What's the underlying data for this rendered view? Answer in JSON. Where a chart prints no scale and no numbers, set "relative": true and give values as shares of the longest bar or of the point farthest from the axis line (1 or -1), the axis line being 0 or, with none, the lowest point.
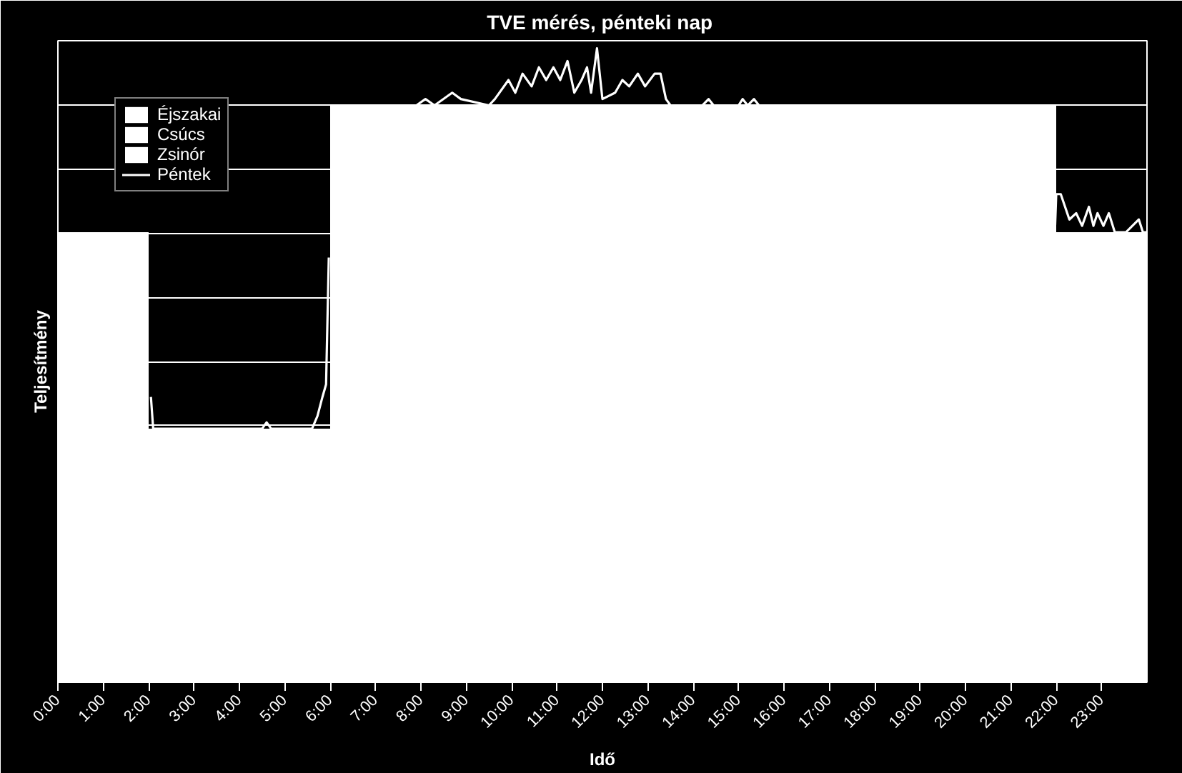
{
  "chart_data": {
    "type": "area",
    "title": "TVE mérés,  pénteki nap",
    "xlabel": "Idő",
    "ylabel": "Teljesítmény",
    "relative": true,
    "grid": "y",
    "legend": "top left",
    "xlim": [
      0,
      24
    ],
    "xticks": [
      {
        "value": 0,
        "label": "0:00"
      },
      {
        "value": 1,
        "label": "1:00"
      },
      {
        "value": 2,
        "label": "2:00"
      },
      {
        "value": 3,
        "label": "3:00"
      },
      {
        "value": 4,
        "label": "4:00"
      },
      {
        "value": 5,
        "label": "5:00"
      },
      {
        "value": 6,
        "label": "6:00"
      },
      {
        "value": 7,
        "label": "7:00"
      },
      {
        "value": 8,
        "label": "8:00"
      },
      {
        "value": 9,
        "label": "9:00"
      },
      {
        "value": 10,
        "label": "10:00"
      },
      {
        "value": 11,
        "label": "11:00"
      },
      {
        "value": 12,
        "label": "12:00"
      },
      {
        "value": 13,
        "label": "13:00"
      },
      {
        "value": 14,
        "label": "14:00"
      },
      {
        "value": 15,
        "label": "15:00"
      },
      {
        "value": 16,
        "label": "16:00"
      },
      {
        "value": 17,
        "label": "17:00"
      },
      {
        "value": 18,
        "label": "18:00"
      },
      {
        "value": 19,
        "label": "19:00"
      },
      {
        "value": 20,
        "label": "20:00"
      },
      {
        "value": 21,
        "label": "21:00"
      },
      {
        "value": 22,
        "label": "22:00"
      },
      {
        "value": 23,
        "label": "23:00"
      }
    ],
    "series": [
      {
        "name": "Éjszakai",
        "color": "#ffffff",
        "x": [
          2,
          6
        ],
        "values": [
          0.4,
          0.4
        ]
      },
      {
        "name": "Csúcs",
        "color": "#ffffff",
        "x": [
          6,
          22
        ],
        "values": [
          0.91,
          0.91
        ]
      },
      {
        "name": "Zsinór",
        "color": "#ffffff",
        "x": [
          0,
          2,
          12,
          22,
          24
        ],
        "values": [
          0.71,
          0.71,
          null,
          0.71,
          0.71
        ]
      },
      {
        "name": "Péntek",
        "color": "#ffffff",
        "type": "line",
        "x": [
          2.05,
          2.1,
          4.5,
          4.6,
          4.7,
          5.6,
          5.72,
          5.83,
          5.91,
          5.97,
          6.0,
          7.9,
          8.1,
          8.3,
          8.69,
          8.88,
          9.5,
          9.63,
          9.93,
          10.08,
          10.24,
          10.44,
          10.6,
          10.76,
          10.92,
          11.07,
          11.23,
          11.38,
          11.54,
          11.66,
          11.75,
          11.88,
          12.0,
          12.28,
          12.44,
          12.59,
          12.78,
          12.94,
          13.15,
          13.28,
          13.4,
          13.5,
          14.2,
          14.34,
          14.45,
          15.0,
          15.09,
          15.2,
          15.34,
          15.45,
          15.5,
          21.97,
          22.0,
          22.1,
          22.29,
          22.44,
          22.57,
          22.72,
          22.82,
          22.91,
          23.04,
          23.16,
          23.29,
          23.38,
          23.54,
          23.82,
          23.91,
          24.0
        ],
        "values": [
          0.45,
          0.4,
          0.4,
          0.41,
          0.4,
          0.4,
          0.42,
          0.45,
          0.47,
          0.67,
          null,
          0.91,
          0.92,
          0.91,
          0.93,
          0.92,
          0.91,
          0.92,
          0.95,
          0.93,
          0.96,
          0.94,
          0.97,
          0.95,
          0.97,
          0.95,
          0.98,
          0.93,
          0.95,
          0.97,
          0.93,
          1.0,
          0.92,
          0.93,
          0.95,
          0.94,
          0.96,
          0.94,
          0.96,
          0.96,
          0.92,
          0.91,
          0.91,
          0.92,
          0.91,
          0.91,
          0.92,
          0.91,
          0.92,
          0.91,
          null,
          0.71,
          0.77,
          0.77,
          0.73,
          0.74,
          0.72,
          0.75,
          0.72,
          0.74,
          0.72,
          0.74,
          0.71,
          0.71,
          0.71,
          0.73,
          0.71,
          0.71
        ]
      }
    ]
  }
}
